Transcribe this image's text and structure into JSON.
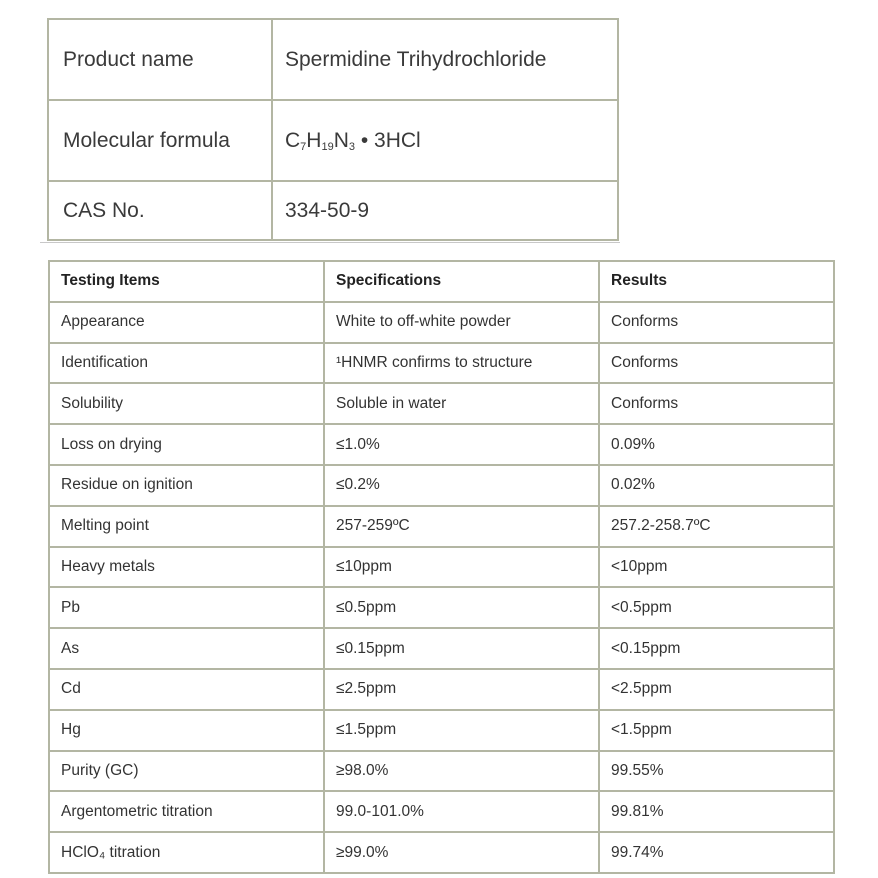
{
  "product": [
    {
      "label": "Product name",
      "value": "Spermidine Trihydrochloride"
    },
    {
      "label": "Molecular formula",
      "value_parts": [
        "C",
        "7",
        "H",
        "19",
        "N",
        "3",
        " • 3HCl"
      ]
    },
    {
      "label": "CAS No.",
      "value": "334-50-9"
    }
  ],
  "tests": {
    "headers": [
      "Testing Items",
      "Specifications",
      "Results"
    ],
    "rows": [
      [
        "Appearance",
        "White to off-white powder",
        "Conforms"
      ],
      [
        "Identification",
        "¹HNMR confirms to structure",
        "Conforms"
      ],
      [
        "Solubility",
        "Soluble in water",
        "Conforms"
      ],
      [
        "Loss on drying",
        "≤1.0%",
        "0.09%"
      ],
      [
        "Residue on ignition",
        "≤0.2%",
        "0.02%"
      ],
      [
        "Melting point",
        "257-259ºC",
        "257.2-258.7ºC"
      ],
      [
        "Heavy metals",
        "≤10ppm",
        "<10ppm"
      ],
      [
        "Pb",
        "≤0.5ppm",
        "<0.5ppm"
      ],
      [
        "As",
        "≤0.15ppm",
        "<0.15ppm"
      ],
      [
        "Cd",
        "≤2.5ppm",
        "<2.5ppm"
      ],
      [
        "Hg",
        "≤1.5ppm",
        "<1.5ppm"
      ],
      [
        "Purity (GC)",
        "≥98.0%",
        "99.55%"
      ],
      [
        "Argentometric titration",
        "99.0-101.0%",
        "99.81%"
      ],
      [
        "HClO₄ titration",
        "≥99.0%",
        "99.74%"
      ]
    ]
  }
}
